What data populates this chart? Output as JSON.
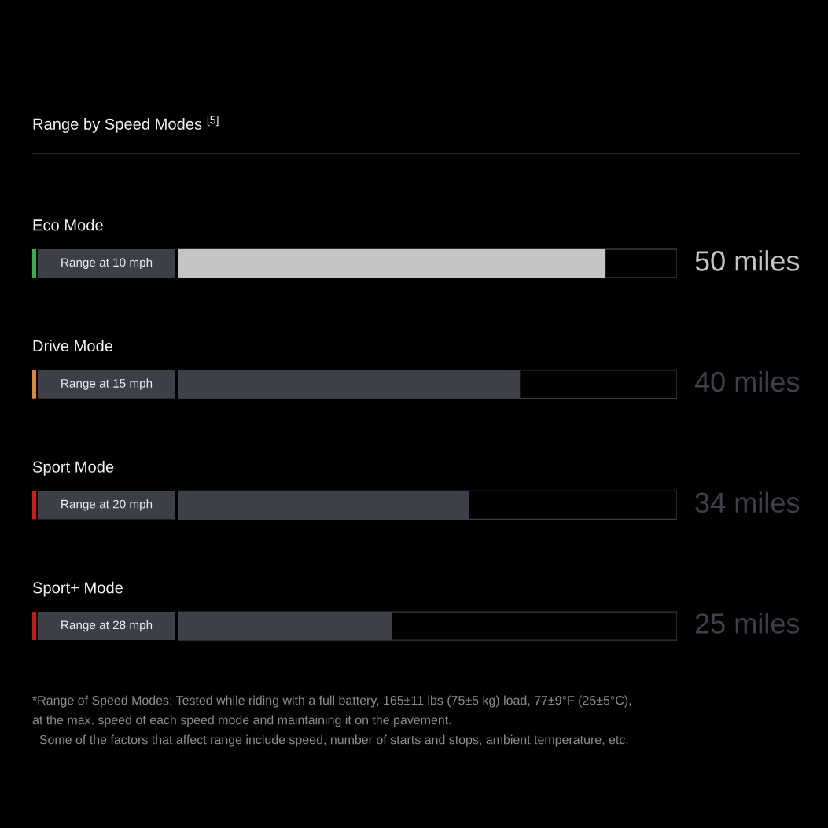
{
  "chart_data": {
    "type": "bar",
    "orientation": "horizontal",
    "title": "Range by Speed Modes $^{[5]}$",
    "categories": [
      "Eco Mode",
      "Drive Mode",
      "Sport Mode",
      "Sport+ Mode"
    ],
    "y2_categories": [
      "Range at 10 mph",
      "Range at 15 mph",
      "Range at 20 mph",
      "Range at 28 mph"
    ],
    "values": [
      50,
      40,
      34,
      25
    ],
    "value_labels": [
      "50 miles",
      "40 miles",
      "34 miles",
      "25 miles"
    ],
    "colors": [
      "#c4c4c4",
      "#3e4049",
      "#3e4049",
      "#3e4049"
    ],
    "annotations": [
      "*Range of Speed Modes: Tested while riding with a full battery, 165±11 lbs (75±5 kg) load, 77±9°F (25±5°C),",
      "at the max. speed of each speed mode and maintaining it on the pavement.",
      "  Some of the factors that affect range include speed, number of starts and stops, ambient temperature, etc."
    ]
  }
}
